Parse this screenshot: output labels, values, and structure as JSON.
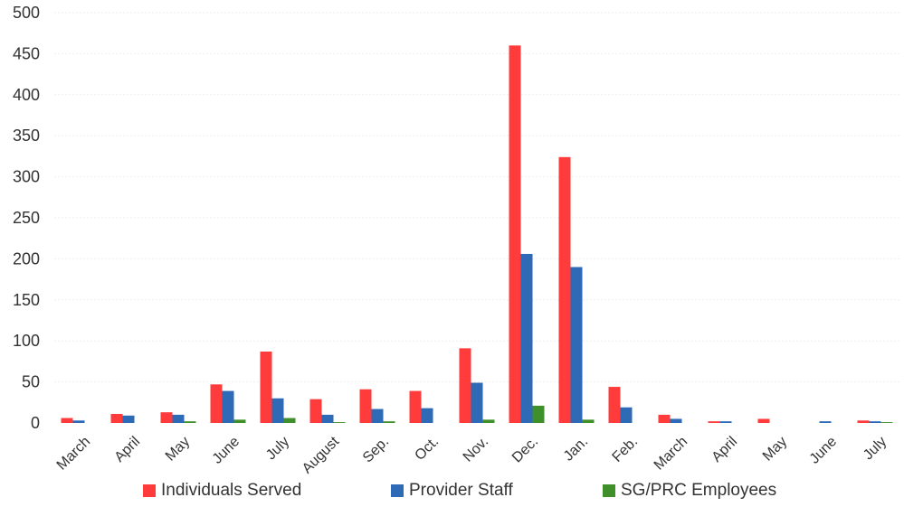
{
  "chart_data": {
    "type": "bar",
    "title": "",
    "xlabel": "",
    "ylabel": "",
    "ylim": [
      0,
      500
    ],
    "yticks": [
      0,
      50,
      100,
      150,
      200,
      250,
      300,
      350,
      400,
      450,
      500
    ],
    "grid": true,
    "legend_position": "bottom",
    "categories": [
      "March",
      "April",
      "May",
      "June",
      "July",
      "August",
      "Sep.",
      "Oct.",
      "Nov.",
      "Dec.",
      "Jan.",
      "Feb.",
      "March",
      "April",
      "May",
      "June",
      "July"
    ],
    "series": [
      {
        "name": "Individuals Served",
        "color": "#ff3b3b",
        "values": [
          6,
          11,
          13,
          47,
          87,
          29,
          41,
          39,
          91,
          460,
          324,
          44,
          10,
          2,
          5,
          0,
          3
        ]
      },
      {
        "name": "Provider Staff",
        "color": "#2e6ab6",
        "values": [
          3,
          9,
          10,
          39,
          30,
          10,
          17,
          18,
          49,
          206,
          190,
          19,
          5,
          2,
          0,
          2,
          2
        ]
      },
      {
        "name": "SG/PRC Employees",
        "color": "#3f8f2a",
        "values": [
          0,
          0,
          2,
          4,
          6,
          1,
          2,
          0,
          4,
          21,
          4,
          0,
          0,
          0,
          0,
          0,
          1
        ]
      }
    ]
  }
}
